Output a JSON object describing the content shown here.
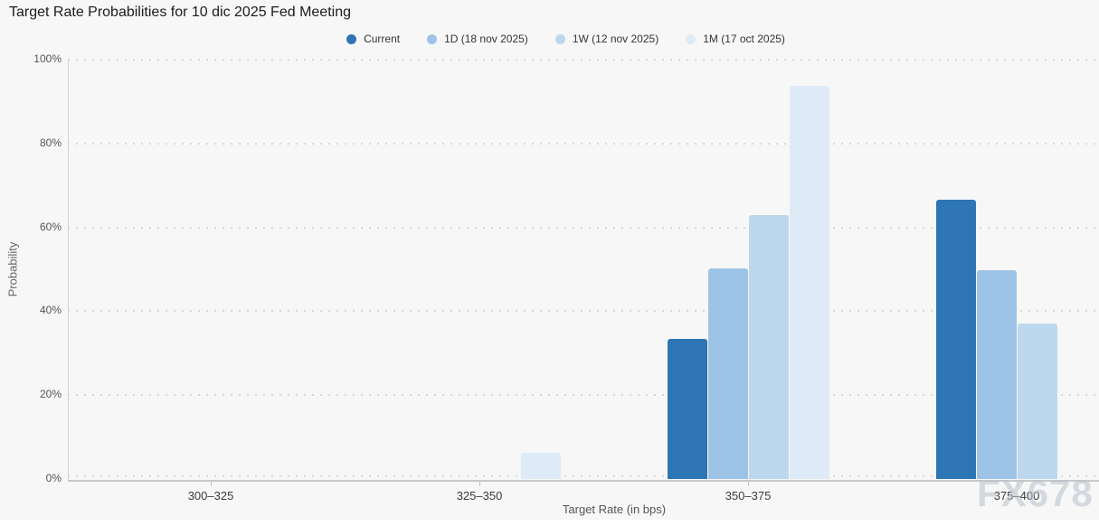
{
  "title": "Target Rate Probabilities for 10 dic 2025 Fed Meeting",
  "watermark": "FX678",
  "colors": {
    "background": "#f7f7f7",
    "axis_line": "#c8c8c8",
    "gridline": "#d8d8d8",
    "current_series": "#2E75B6",
    "one_day_series": "#9DC3E6",
    "one_week_series": "#BDD7EE",
    "one_month_series": "#DEEBF7"
  },
  "chart_data": {
    "type": "bar",
    "title": "Target Rate Probabilities for 10 dic 2025 Fed Meeting",
    "categories": [
      "300–325",
      "325–350",
      "350–375",
      "375–400"
    ],
    "series": [
      {
        "name": "Current",
        "color": "#2E75B6",
        "values": [
          0,
          0,
          33.4,
          66.6
        ]
      },
      {
        "name": "1D (18 nov 2025)",
        "color": "#9DC3E6",
        "values": [
          0,
          0,
          50.2,
          49.8
        ]
      },
      {
        "name": "1W (12 nov 2025)",
        "color": "#BDD7EE",
        "values": [
          0,
          0,
          62.9,
          37.1
        ]
      },
      {
        "name": "1M (17 oct 2025)",
        "color": "#DEEBF7",
        "values": [
          0,
          6.3,
          93.7,
          0
        ]
      }
    ],
    "xlabel": "Target Rate (in bps)",
    "ylabel": "Probability",
    "ylim": [
      0,
      100
    ],
    "yticks": [
      "0%",
      "20%",
      "40%",
      "60%",
      "80%",
      "100%"
    ],
    "grid": "dotted horizontal",
    "legend_position": "top"
  }
}
